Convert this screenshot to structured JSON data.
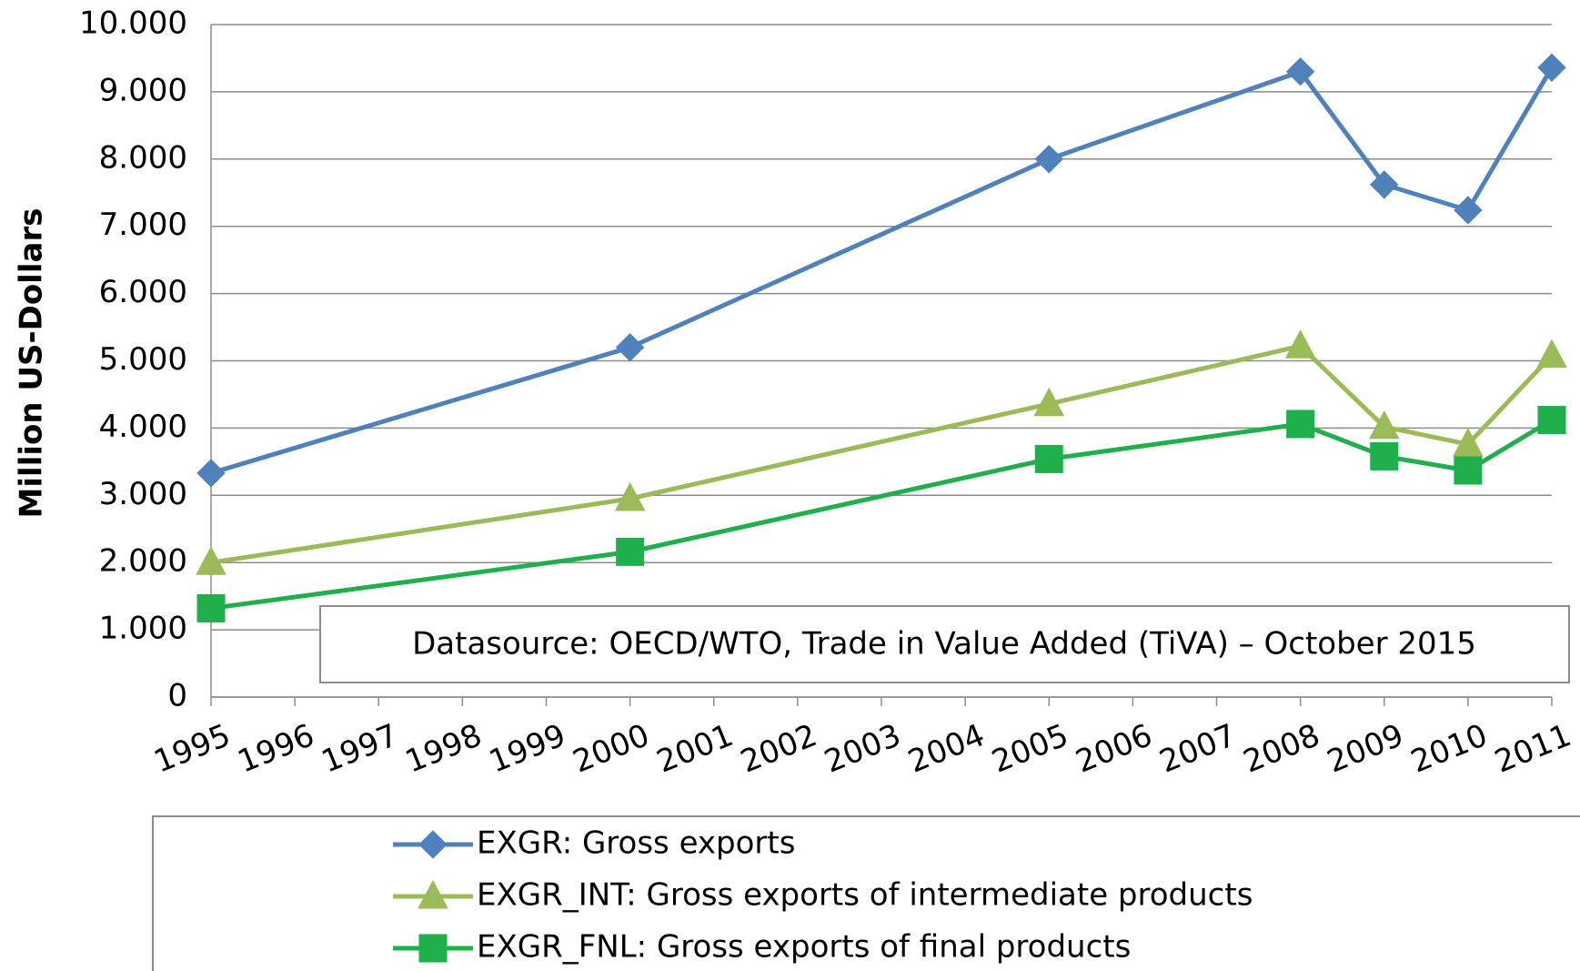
{
  "chart_data": {
    "type": "line",
    "y_label": "Million  US-Dollars",
    "annotation": "Datasource: OECD/WTO, Trade in Value Added (TiVA) – October 2015",
    "x": [
      1995,
      2000,
      2005,
      2008,
      2009,
      2010,
      2011
    ],
    "xlim": [
      1995,
      2011
    ],
    "xticks": [
      1995,
      1996,
      1997,
      1998,
      1999,
      2000,
      2001,
      2002,
      2003,
      2004,
      2005,
      2006,
      2007,
      2008,
      2009,
      2010,
      2011
    ],
    "ylim": [
      0,
      10000
    ],
    "yticks": [
      0,
      {
        "value": 1000,
        "label": "1.000"
      },
      {
        "value": 2000,
        "label": "2.000"
      },
      {
        "value": 3000,
        "label": "3.000"
      },
      {
        "value": 4000,
        "label": "4.000"
      },
      {
        "value": 5000,
        "label": "5.000"
      },
      {
        "value": 6000,
        "label": "6.000"
      },
      {
        "value": 7000,
        "label": "7.000"
      },
      {
        "value": 8000,
        "label": "8.000"
      },
      {
        "value": 9000,
        "label": "9.000"
      },
      {
        "value": 10000,
        "label": "10.000"
      }
    ],
    "grid": true,
    "series": [
      {
        "name": "EXGR: Gross exports",
        "color": "#4f81bd",
        "marker": "diamond",
        "values": [
          3330,
          5200,
          8000,
          9300,
          7620,
          7240,
          9360
        ]
      },
      {
        "name": "EXGR_INT: Gross exports of intermediate products",
        "color": "#9bbb59",
        "marker": "triangle",
        "values": [
          2000,
          2950,
          4360,
          5220,
          4020,
          3760,
          5080
        ]
      },
      {
        "name": "EXGR_FNL: Gross exports of final products",
        "color": "#1fb04c",
        "marker": "square",
        "values": [
          1320,
          2160,
          3540,
          4060,
          3580,
          3370,
          4120
        ]
      }
    ]
  }
}
